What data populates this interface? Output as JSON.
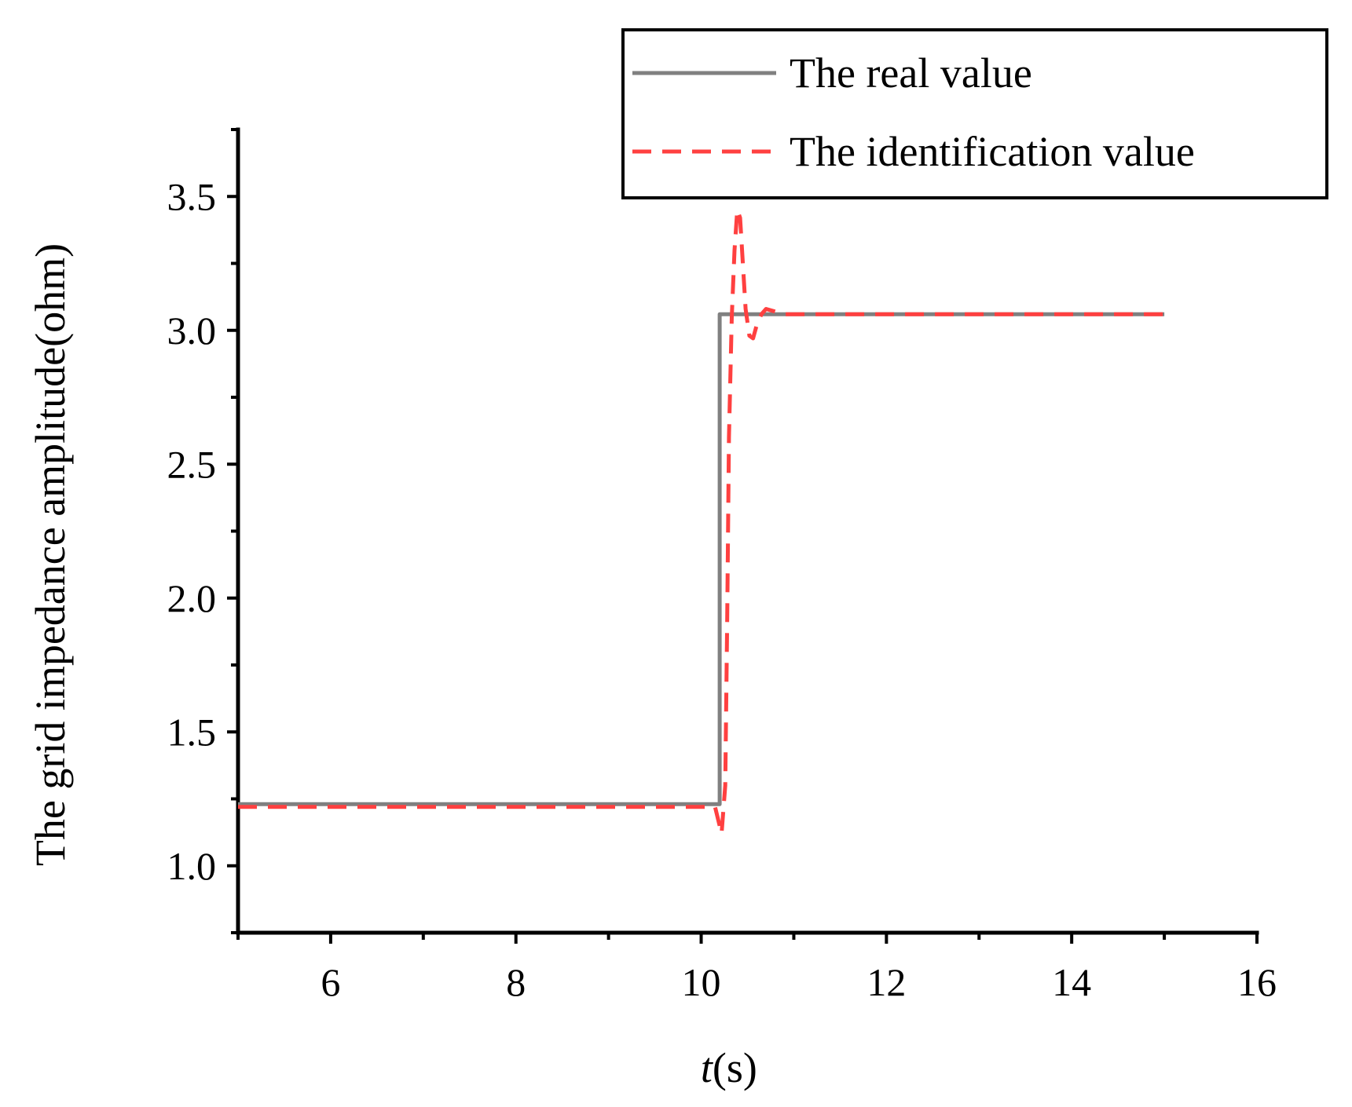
{
  "chart_data": {
    "type": "line",
    "title": "",
    "xlabel_italic": "t",
    "xlabel_rest": "(s)",
    "ylabel": "The grid impedance amplitude(ohm)",
    "xlim": [
      5,
      16
    ],
    "ylim": [
      0.75,
      3.75
    ],
    "x_ticks": [
      6,
      8,
      10,
      12,
      14,
      16
    ],
    "x_tick_labels": [
      "6",
      "8",
      "10",
      "12",
      "14",
      "16"
    ],
    "x_minor_ticks": [
      5,
      7,
      9,
      11,
      13,
      15
    ],
    "y_ticks": [
      1.0,
      1.5,
      2.0,
      2.5,
      3.0,
      3.5
    ],
    "y_tick_labels": [
      "1.0",
      "1.5",
      "2.0",
      "2.5",
      "3.0",
      "3.5"
    ],
    "y_minor_ticks": [
      0.75,
      1.25,
      1.75,
      2.25,
      2.75,
      3.25,
      3.75
    ],
    "grid": false,
    "legend_position": "top-right",
    "series": [
      {
        "name": "The real value",
        "color": "#808080",
        "style": "solid",
        "x": [
          5,
          10.2,
          10.2,
          15
        ],
        "y": [
          1.23,
          1.23,
          3.06,
          3.06
        ]
      },
      {
        "name": "The identification value",
        "color": "#ff4040",
        "style": "dashed",
        "x": [
          5,
          10.15,
          10.22,
          10.26,
          10.28,
          10.3,
          10.33,
          10.36,
          10.39,
          10.42,
          10.45,
          10.48,
          10.52,
          10.56,
          10.6,
          10.65,
          10.7,
          10.8,
          10.9,
          11.0,
          12,
          13,
          14,
          15
        ],
        "y": [
          1.22,
          1.22,
          1.12,
          1.3,
          1.9,
          2.6,
          3.05,
          3.3,
          3.45,
          3.42,
          3.25,
          3.08,
          2.98,
          2.97,
          3.02,
          3.06,
          3.08,
          3.07,
          3.06,
          3.06,
          3.06,
          3.06,
          3.06,
          3.06
        ]
      }
    ]
  }
}
